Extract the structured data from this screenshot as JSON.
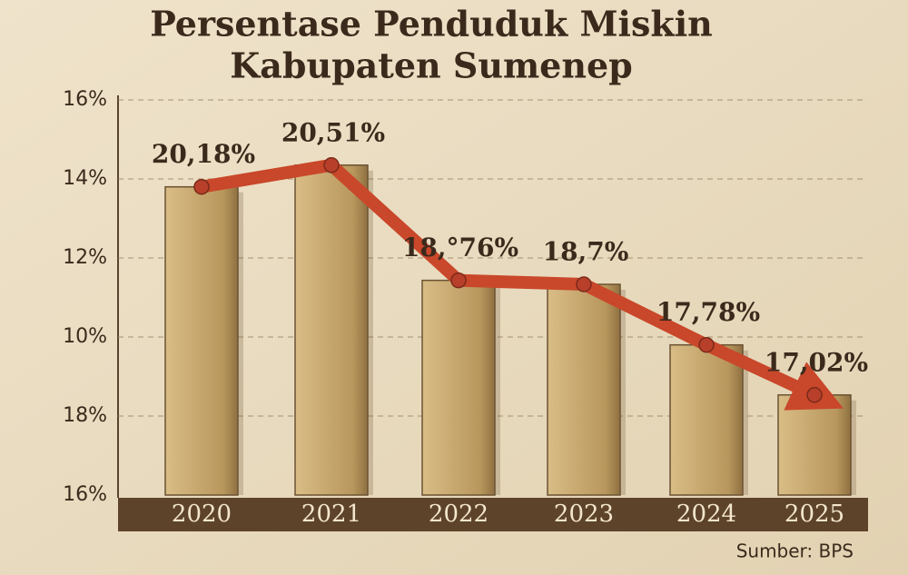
{
  "chart_data": {
    "type": "bar",
    "title": "Persentase Penduduk Miskin",
    "subtitle": "Kabupaten Sumenep",
    "categories": [
      "2020",
      "2021",
      "2022",
      "2023",
      "2024",
      "2025"
    ],
    "values": [
      20.18,
      20.51,
      18.76,
      18.7,
      17.78,
      17.02
    ],
    "value_labels": [
      "20,18%",
      "20,51%",
      "18,°76%",
      "18,7%",
      "17,78%",
      "17,02%"
    ],
    "y_axis_labels": [
      "16%",
      "14%",
      "12%",
      "10%",
      "18%",
      "16%"
    ],
    "ylim": [
      15.5,
      21.5
    ],
    "color": "#c4a36a",
    "trend_color": "#c9472a",
    "grid": true,
    "source": "Sumber: BPS"
  }
}
